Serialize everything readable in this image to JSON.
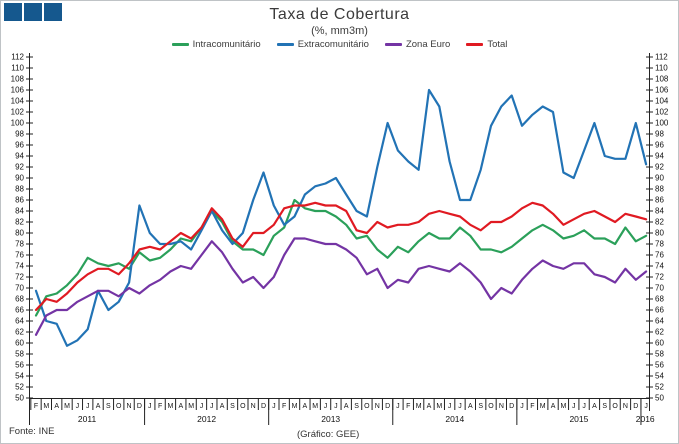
{
  "header": {
    "title": "Taxa de Cobertura",
    "subtitle": "(%, mm3m)"
  },
  "footer": {
    "source": "Fonte: INE",
    "credit": "(Gráfico: GEE)"
  },
  "colors": {
    "logo": "#15588E",
    "title": "#3b3b3b",
    "axis": "#222222"
  },
  "chart_data": {
    "type": "line",
    "title": "Taxa de Cobertura",
    "subtitle": "(%, mm3m)",
    "ylim": [
      50,
      112
    ],
    "ytick_step": 2,
    "grid": false,
    "legend_position": "top",
    "x_months": [
      "F",
      "M",
      "A",
      "M",
      "J",
      "J",
      "A",
      "S",
      "O",
      "N",
      "D",
      "J",
      "F",
      "M",
      "A",
      "M",
      "J",
      "J",
      "A",
      "S",
      "O",
      "N",
      "D",
      "J",
      "F",
      "M",
      "A",
      "M",
      "J",
      "J",
      "A",
      "S",
      "O",
      "N",
      "D",
      "J",
      "F",
      "M",
      "A",
      "M",
      "J",
      "J",
      "A",
      "S",
      "O",
      "N",
      "D",
      "J",
      "F",
      "M",
      "A",
      "M",
      "J",
      "J",
      "A",
      "S",
      "O",
      "N",
      "D",
      "J"
    ],
    "x_years": [
      {
        "label": "2011",
        "months": 11
      },
      {
        "label": "2012",
        "months": 12
      },
      {
        "label": "2013",
        "months": 12
      },
      {
        "label": "2014",
        "months": 12
      },
      {
        "label": "2015",
        "months": 12
      },
      {
        "label": "2016",
        "months": 1
      }
    ],
    "series": [
      {
        "name": "Intracomunitário",
        "color": "#2BA05A",
        "values": [
          65,
          68.5,
          69,
          70.5,
          72.5,
          75.5,
          74.5,
          74,
          74.5,
          73.5,
          76.5,
          75,
          75.5,
          77,
          79,
          78.5,
          81,
          84,
          82,
          78.5,
          77,
          77,
          76,
          79.5,
          81,
          86,
          84.5,
          84,
          84,
          83,
          81.5,
          79,
          79.5,
          77,
          75.5,
          77.5,
          76.5,
          78.5,
          80,
          79,
          79,
          81,
          79.5,
          77,
          77,
          76.5,
          77.5,
          79,
          80.5,
          81.5,
          80.5,
          79,
          79.5,
          80.5,
          79,
          79,
          78,
          81,
          78.5,
          79.5
        ]
      },
      {
        "name": "Extracomunitário",
        "color": "#2273B5",
        "values": [
          69.5,
          64,
          63.5,
          59.5,
          60.5,
          62.5,
          69.5,
          66,
          67.5,
          71,
          85,
          80,
          78,
          78,
          78.5,
          77,
          80.5,
          84,
          80.5,
          78,
          80,
          86,
          91,
          85,
          81.5,
          83,
          87,
          88.5,
          89,
          90,
          87,
          84,
          83,
          92,
          100,
          95,
          93,
          91.5,
          106,
          103,
          93,
          86,
          86,
          91.5,
          99.5,
          103,
          105,
          99.5,
          101.5,
          103,
          102,
          91,
          90,
          95,
          100,
          94,
          93.5,
          93.5,
          100,
          92.5
        ]
      },
      {
        "name": "Zona Euro",
        "color": "#7434A4",
        "values": [
          61.5,
          65,
          66,
          66,
          67.5,
          68.5,
          69.5,
          69.5,
          68.5,
          70,
          69,
          70.5,
          71.5,
          73,
          74,
          73.5,
          76,
          78.5,
          76.5,
          73.5,
          71,
          72,
          70,
          72,
          76,
          79,
          79,
          78.5,
          78,
          78,
          77,
          75.5,
          72.5,
          73.5,
          70,
          71.5,
          71,
          73.5,
          74,
          73.5,
          73,
          74.5,
          73,
          71,
          68,
          70,
          69,
          71.5,
          73.5,
          75,
          74,
          73.5,
          74.5,
          74.5,
          72.5,
          72,
          71,
          73.5,
          71.5,
          73
        ]
      },
      {
        "name": "Total",
        "color": "#E01A22",
        "values": [
          66,
          68,
          67.5,
          69,
          71,
          72.5,
          73.5,
          73.5,
          72.5,
          74.5,
          77,
          77.5,
          77,
          78.5,
          80,
          79,
          81,
          84.5,
          82.5,
          79,
          77.5,
          80,
          80,
          81.5,
          84.5,
          85,
          85,
          85.5,
          85,
          85,
          84,
          80.5,
          80,
          82,
          81,
          81.5,
          81.5,
          82,
          83.5,
          84,
          83.5,
          83,
          81.5,
          80.5,
          82,
          82,
          83,
          84.5,
          85.5,
          85,
          83.5,
          81.5,
          82.5,
          83.5,
          84,
          83,
          82,
          83.5,
          83,
          82.5
        ]
      }
    ]
  }
}
